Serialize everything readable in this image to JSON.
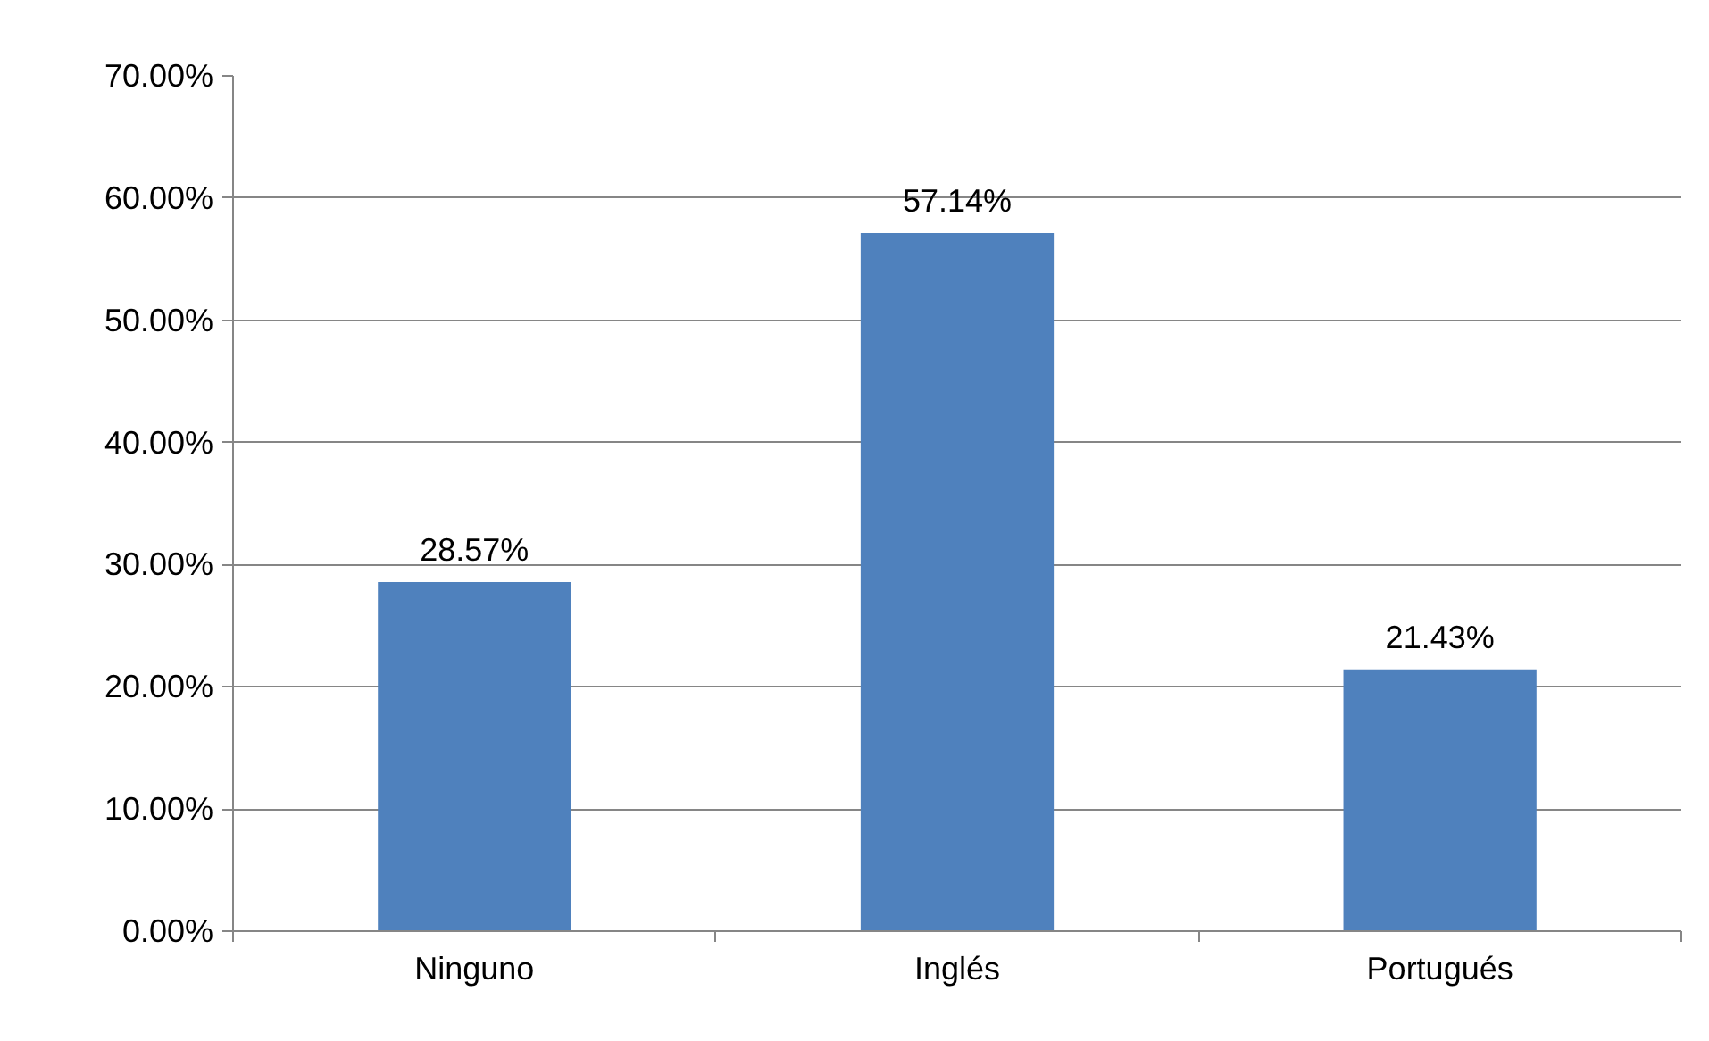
{
  "chart_data": {
    "type": "bar",
    "categories": [
      "Ninguno",
      "Inglés",
      "Portugués"
    ],
    "values": [
      28.57,
      57.14,
      21.43
    ],
    "value_labels": [
      "28.57%",
      "57.14%",
      "21.43%"
    ],
    "color": "#4f81bd",
    "ylim": [
      0,
      70
    ],
    "yticks": [
      {
        "value": 0,
        "label": "0.00%"
      },
      {
        "value": 10,
        "label": "10.00%"
      },
      {
        "value": 20,
        "label": "20.00%"
      },
      {
        "value": 30,
        "label": "30.00%"
      },
      {
        "value": 40,
        "label": "40.00%"
      },
      {
        "value": 50,
        "label": "50.00%"
      },
      {
        "value": 60,
        "label": "60.00%"
      },
      {
        "value": 70,
        "label": "70.00%"
      }
    ],
    "grid": "y"
  }
}
